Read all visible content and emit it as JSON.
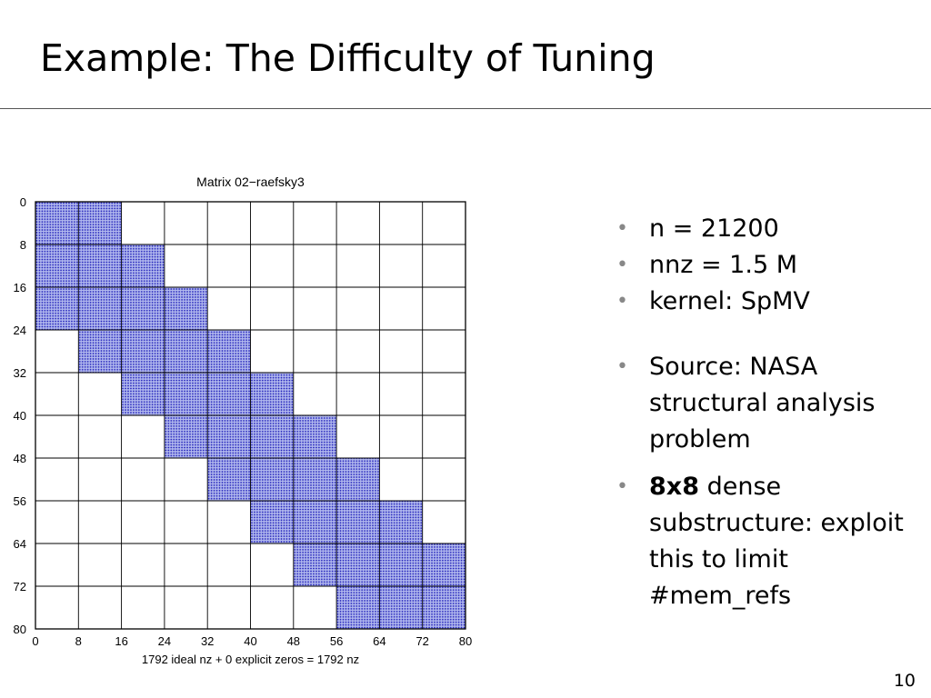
{
  "slide": {
    "title": "Example: The Difficulty of Tuning",
    "page_number": "10"
  },
  "bullets": [
    {
      "text": "n = 21200"
    },
    {
      "text": "nnz = 1.5 M"
    },
    {
      "text": "kernel: SpMV"
    },
    {
      "text": "Source: NASA structural analysis problem"
    },
    {
      "bold": "8x8",
      "text": " dense substructure: exploit this to limit #mem_refs"
    }
  ],
  "chart_data": {
    "type": "heatmap",
    "title": "Matrix 02−raefsky3",
    "xlabel": "1792 ideal nz + 0 explicit zeros = 1792 nz",
    "ylabel": "",
    "xlim": [
      0,
      80
    ],
    "ylim": [
      0,
      80
    ],
    "x_ticks": [
      "0",
      "8",
      "16",
      "24",
      "32",
      "40",
      "48",
      "56",
      "64",
      "72",
      "80"
    ],
    "y_ticks": [
      "0",
      "8",
      "16",
      "24",
      "32",
      "40",
      "48",
      "56",
      "64",
      "72",
      "80"
    ],
    "grid": true,
    "block_size": 8,
    "blocks": [
      {
        "row": 0,
        "col": 0
      },
      {
        "row": 0,
        "col": 8
      },
      {
        "row": 8,
        "col": 0
      },
      {
        "row": 8,
        "col": 8
      },
      {
        "row": 8,
        "col": 16
      },
      {
        "row": 16,
        "col": 0
      },
      {
        "row": 16,
        "col": 8
      },
      {
        "row": 16,
        "col": 16
      },
      {
        "row": 16,
        "col": 24
      },
      {
        "row": 24,
        "col": 8
      },
      {
        "row": 24,
        "col": 16
      },
      {
        "row": 24,
        "col": 24
      },
      {
        "row": 24,
        "col": 32
      },
      {
        "row": 32,
        "col": 16
      },
      {
        "row": 32,
        "col": 24
      },
      {
        "row": 32,
        "col": 32
      },
      {
        "row": 32,
        "col": 40
      },
      {
        "row": 40,
        "col": 24
      },
      {
        "row": 40,
        "col": 32
      },
      {
        "row": 40,
        "col": 40
      },
      {
        "row": 40,
        "col": 48
      },
      {
        "row": 48,
        "col": 32
      },
      {
        "row": 48,
        "col": 40
      },
      {
        "row": 48,
        "col": 48
      },
      {
        "row": 48,
        "col": 56
      },
      {
        "row": 56,
        "col": 40
      },
      {
        "row": 56,
        "col": 48
      },
      {
        "row": 56,
        "col": 56
      },
      {
        "row": 56,
        "col": 64
      },
      {
        "row": 64,
        "col": 48
      },
      {
        "row": 64,
        "col": 56
      },
      {
        "row": 64,
        "col": 64
      },
      {
        "row": 64,
        "col": 72
      },
      {
        "row": 72,
        "col": 56
      },
      {
        "row": 72,
        "col": 64
      },
      {
        "row": 72,
        "col": 72
      }
    ],
    "colors": {
      "fill": "#4a5ad6",
      "dots": "#1a1ab8",
      "grid": "#000000"
    }
  }
}
